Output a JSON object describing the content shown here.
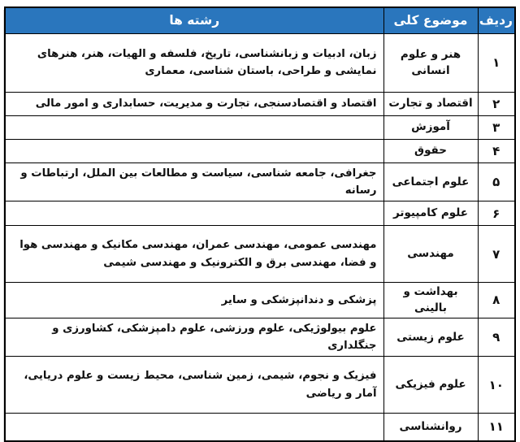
{
  "colors": {
    "header_bg": "#2A76BD",
    "header_text": "#FFFFFF",
    "border": "#000000",
    "page_bg": "#FFFFFF"
  },
  "table": {
    "headers": {
      "radif": "ردیف",
      "mozoo": "موضوع کلی",
      "reshteha": "رشته ها"
    },
    "rows": [
      {
        "num": "۱",
        "subject": "هنر و علوم انسانی",
        "fields": "زبان، ادبیات و زبانشناسی، تاریخ، فلسفه و الهیات، هنر، هنرهای نمایشی و طراحی، باستان شناسی، معماری"
      },
      {
        "num": "۲",
        "subject": "اقتصاد و تجارت",
        "fields": "اقتصاد و اقتصادسنجی، تجارت و مدیریت، حسابداری و امور مالی"
      },
      {
        "num": "۳",
        "subject": "آموزش",
        "fields": ""
      },
      {
        "num": "۴",
        "subject": "حقوق",
        "fields": ""
      },
      {
        "num": "۵",
        "subject": "علوم اجتماعی",
        "fields": "جغرافی، جامعه شناسی، سیاست و مطالعات بین الملل، ارتباطات و رسانه"
      },
      {
        "num": "۶",
        "subject": "علوم کامپیوتر",
        "fields": ""
      },
      {
        "num": "۷",
        "subject": "مهندسی",
        "fields": "مهندسی عمومی، مهندسی عمران، مهندسی مکانیک و مهندسی هوا و فضا، مهندسی برق و الکترونیک و مهندسی شیمی"
      },
      {
        "num": "۸",
        "subject": "بهداشت و بالینی",
        "fields": "پزشکی و دندانپزشکی و سایر"
      },
      {
        "num": "۹",
        "subject": "علوم زیستی",
        "fields": "علوم بیولوژیکی، علوم ورزشی، علوم دامپزشکی، کشاورزی و جنگلداری"
      },
      {
        "num": "۱۰",
        "subject": "علوم فیزیکی",
        "fields": "فیزیک و نجوم، شیمی، زمین شناسی، محیط زیست و علوم دریایی، آمار و ریاضی"
      },
      {
        "num": "۱۱",
        "subject": "روانشناسی",
        "fields": ""
      }
    ]
  }
}
